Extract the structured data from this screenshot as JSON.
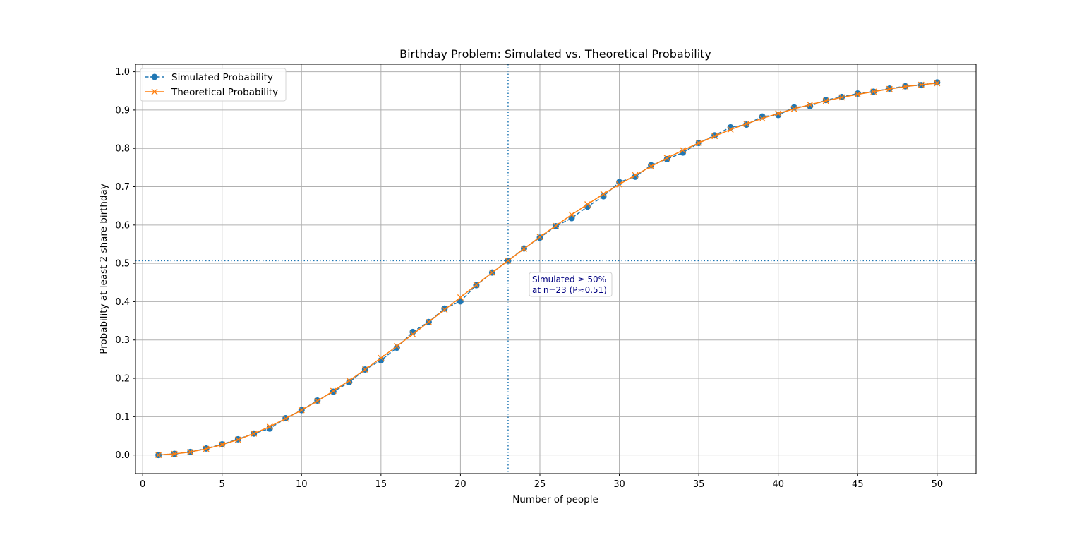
{
  "chart_data": {
    "type": "line",
    "title": "Birthday Problem: Simulated vs. Theoretical Probability",
    "xlabel": "Number of people",
    "ylabel": "Probability at least 2 share birthday",
    "xlim": [
      -0.45,
      52.45
    ],
    "ylim": [
      -0.0485,
      1.0195
    ],
    "xticks": [
      0,
      5,
      10,
      15,
      20,
      25,
      30,
      35,
      40,
      45,
      50
    ],
    "yticks": [
      0.0,
      0.1,
      0.2,
      0.3,
      0.4,
      0.5,
      0.6,
      0.7,
      0.8,
      0.9,
      1.0
    ],
    "xtick_labels": [
      "0",
      "5",
      "10",
      "15",
      "20",
      "25",
      "30",
      "35",
      "40",
      "45",
      "50"
    ],
    "ytick_labels": [
      "0.0",
      "0.1",
      "0.2",
      "0.3",
      "0.4",
      "0.5",
      "0.6",
      "0.7",
      "0.8",
      "0.9",
      "1.0"
    ],
    "grid": true,
    "legend_position": "upper-left",
    "x": [
      1,
      2,
      3,
      4,
      5,
      6,
      7,
      8,
      9,
      10,
      11,
      12,
      13,
      14,
      15,
      16,
      17,
      18,
      19,
      20,
      21,
      22,
      23,
      24,
      25,
      26,
      27,
      28,
      29,
      30,
      31,
      32,
      33,
      34,
      35,
      36,
      37,
      38,
      39,
      40,
      41,
      42,
      43,
      44,
      45,
      46,
      47,
      48,
      49,
      50
    ],
    "series": [
      {
        "name": "Simulated Probability",
        "color": "#1f77b4",
        "linestyle": "dashed",
        "marker": "circle",
        "values": [
          0.0,
          0.003,
          0.008,
          0.017,
          0.028,
          0.041,
          0.056,
          0.069,
          0.096,
          0.117,
          0.142,
          0.165,
          0.19,
          0.223,
          0.247,
          0.28,
          0.321,
          0.347,
          0.382,
          0.401,
          0.443,
          0.476,
          0.507,
          0.539,
          0.567,
          0.597,
          0.618,
          0.648,
          0.675,
          0.712,
          0.726,
          0.756,
          0.772,
          0.789,
          0.814,
          0.834,
          0.855,
          0.862,
          0.883,
          0.887,
          0.907,
          0.91,
          0.926,
          0.934,
          0.943,
          0.948,
          0.956,
          0.962,
          0.965,
          0.972
        ]
      },
      {
        "name": "Theoretical Probability",
        "color": "#ff7f0e",
        "linestyle": "solid",
        "marker": "x",
        "values": [
          0.0,
          0.003,
          0.008,
          0.016,
          0.027,
          0.04,
          0.056,
          0.074,
          0.095,
          0.117,
          0.141,
          0.167,
          0.194,
          0.223,
          0.253,
          0.284,
          0.315,
          0.347,
          0.379,
          0.411,
          0.444,
          0.476,
          0.507,
          0.538,
          0.569,
          0.598,
          0.627,
          0.654,
          0.681,
          0.706,
          0.73,
          0.753,
          0.775,
          0.795,
          0.814,
          0.832,
          0.849,
          0.864,
          0.878,
          0.891,
          0.903,
          0.914,
          0.924,
          0.933,
          0.941,
          0.948,
          0.955,
          0.961,
          0.966,
          0.97
        ]
      }
    ],
    "reference_lines": {
      "vertical_x": 23,
      "horizontal_y": 0.507,
      "color": "#1f77b4",
      "linestyle": "dotted"
    },
    "annotation": {
      "line1": "Simulated ≥ 50%",
      "line2": "at n=23 (P≈0.51)",
      "x": 24,
      "y": 0.44,
      "text_color": "#000080"
    }
  }
}
